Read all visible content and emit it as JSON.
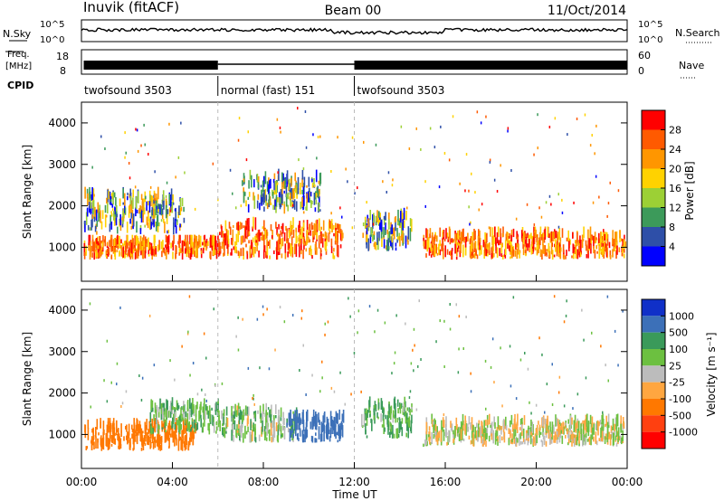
{
  "header": {
    "station": "Inuvik (fitACF)",
    "beam": "Beam 00",
    "date": "11/Oct/2014"
  },
  "noise_panel": {
    "left_label": "N.Sky",
    "right_label": "N.Search",
    "left_ticks": [
      "10^5",
      "10^0"
    ],
    "right_ticks": [
      "10^5",
      "10^0"
    ]
  },
  "freq_panel": {
    "left_label_1": "Freq.",
    "left_label_2": "[MHz]",
    "right_label": "Nave",
    "left_ticks": [
      "18",
      "8"
    ],
    "right_ticks": [
      "60",
      "0"
    ]
  },
  "cpid": {
    "label": "CPID",
    "segments": [
      {
        "name": "twofsound 3503",
        "start_hour": 0,
        "end_hour": 6
      },
      {
        "name": "normal (fast) 151",
        "start_hour": 6,
        "end_hour": 12
      },
      {
        "name": "twofsound 3503",
        "start_hour": 12,
        "end_hour": 24
      }
    ]
  },
  "power_colorbar": {
    "label": "Power [dB]",
    "ticks": [
      "28",
      "24",
      "20",
      "16",
      "12",
      "8",
      "4"
    ],
    "colors": [
      "#ff0000",
      "#ff5a00",
      "#ff9600",
      "#ffd200",
      "#9cd035",
      "#3c9a5a",
      "#2e4fa8",
      "#0000ff"
    ]
  },
  "velocity_colorbar": {
    "label": "Velocity [m s⁻¹]",
    "ticks": [
      "1000",
      "500",
      "100",
      "25",
      "-25",
      "-100",
      "-500",
      "-1000"
    ],
    "colors": [
      "#1030c8",
      "#3c70b8",
      "#3a9a5a",
      "#6cc040",
      "#bcbcbc",
      "#ffa640",
      "#ff7800",
      "#ff4010",
      "#ff0000"
    ]
  },
  "chart_data": [
    {
      "type": "heatmap",
      "title": "Power",
      "xlabel": "",
      "ylabel": "Slant Range [km]",
      "xlim": [
        0,
        24
      ],
      "ylim": [
        180,
        4500
      ],
      "yticks": [
        "1000",
        "2000",
        "3000",
        "4000"
      ],
      "features": [
        {
          "t0": 0.1,
          "t1": 6.0,
          "r0": 700,
          "r1": 1300,
          "level": "high"
        },
        {
          "t0": 0.1,
          "t1": 4.5,
          "r0": 1300,
          "r1": 2600,
          "level": "medium"
        },
        {
          "t0": 6.0,
          "t1": 11.5,
          "r0": 700,
          "r1": 1800,
          "level": "high"
        },
        {
          "t0": 7.0,
          "t1": 10.5,
          "r0": 1800,
          "r1": 3000,
          "level": "medium"
        },
        {
          "t0": 12.3,
          "t1": 14.5,
          "r0": 900,
          "r1": 2000,
          "level": "medium"
        },
        {
          "t0": 15.0,
          "t1": 23.9,
          "r0": 700,
          "r1": 1500,
          "level": "high"
        }
      ]
    },
    {
      "type": "heatmap",
      "title": "Velocity",
      "xlabel": "Time UT",
      "ylabel": "Slant Range [km]",
      "xlim": [
        0,
        24
      ],
      "ylim": [
        180,
        4500
      ],
      "xticks": [
        "00:00",
        "04:00",
        "08:00",
        "12:00",
        "16:00",
        "20:00",
        "00:00"
      ],
      "yticks": [
        "1000",
        "2000",
        "3000",
        "4000"
      ],
      "features": [
        {
          "t0": 0.1,
          "t1": 5.0,
          "r0": 600,
          "r1": 1400,
          "velocity": -300
        },
        {
          "t0": 3.0,
          "t1": 6.0,
          "r0": 1000,
          "r1": 1900,
          "velocity": 100
        },
        {
          "t0": 6.0,
          "t1": 9.5,
          "r0": 800,
          "r1": 1800,
          "velocity": 50
        },
        {
          "t0": 9.0,
          "t1": 11.5,
          "r0": 800,
          "r1": 1600,
          "velocity": 800
        },
        {
          "t0": 12.3,
          "t1": 14.5,
          "r0": 900,
          "r1": 2000,
          "velocity": 100
        },
        {
          "t0": 15.0,
          "t1": 23.9,
          "r0": 700,
          "r1": 1500,
          "velocity": 0
        }
      ]
    }
  ]
}
